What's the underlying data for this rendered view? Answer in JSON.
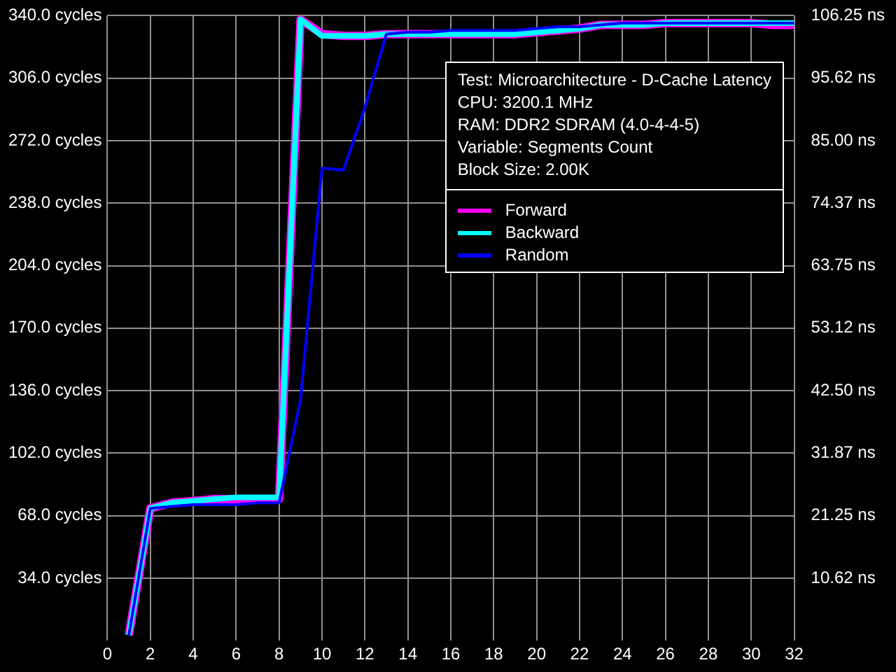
{
  "chart_data": {
    "type": "line",
    "annotations": [
      "Test: Microarchitecture - D-Cache Latency",
      "CPU: 3200.1 MHz",
      "RAM: DDR2 SDRAM (4.0-4-4-5)",
      "Variable: Segments Count",
      "Block Size: 2.00K"
    ],
    "x": [
      1,
      2,
      3,
      4,
      5,
      6,
      7,
      8,
      9,
      10,
      11,
      12,
      13,
      14,
      15,
      16,
      17,
      18,
      19,
      20,
      21,
      22,
      23,
      24,
      25,
      26,
      27,
      28,
      29,
      30,
      31,
      32
    ],
    "series": [
      {
        "name": "Forward",
        "color": "#ff00ff",
        "values": [
          3,
          72,
          75,
          76,
          77,
          77,
          77,
          77,
          338,
          330,
          329,
          329,
          330,
          330,
          330,
          330,
          330,
          330,
          330,
          331,
          332,
          333,
          335,
          335,
          335,
          336,
          336,
          336,
          336,
          336,
          335,
          335
        ]
      },
      {
        "name": "Backward",
        "color": "#00ffff",
        "values": [
          3,
          72,
          75,
          76,
          77,
          78,
          78,
          78,
          338,
          329,
          329,
          329,
          330,
          330,
          330,
          330,
          330,
          330,
          330,
          331,
          332,
          333,
          335,
          335,
          335,
          336,
          336,
          336,
          336,
          336,
          336,
          336
        ]
      },
      {
        "name": "Random",
        "color": "#0000ff",
        "values": [
          3,
          72,
          73,
          74,
          74,
          74,
          75,
          75,
          131,
          257,
          256,
          290,
          330,
          331,
          331,
          332,
          332,
          332,
          332,
          333,
          334,
          334,
          335,
          336,
          336,
          336,
          336,
          336,
          336,
          336,
          336,
          336
        ]
      }
    ],
    "xlim": [
      0,
      32
    ],
    "xticks": [
      0,
      2,
      4,
      6,
      8,
      10,
      12,
      14,
      16,
      18,
      20,
      22,
      24,
      26,
      28,
      30,
      32
    ],
    "ylim": [
      0,
      340
    ],
    "yticks": [
      {
        "value": 34,
        "label": "34.0 cycles"
      },
      {
        "value": 68,
        "label": "68.0 cycles"
      },
      {
        "value": 102,
        "label": "102.0 cycles"
      },
      {
        "value": 136,
        "label": "136.0 cycles"
      },
      {
        "value": 170,
        "label": "170.0 cycles"
      },
      {
        "value": 204,
        "label": "204.0 cycles"
      },
      {
        "value": 238,
        "label": "238.0 cycles"
      },
      {
        "value": 272,
        "label": "272.0 cycles"
      },
      {
        "value": 306,
        "label": "306.0 cycles"
      },
      {
        "value": 340,
        "label": "340.0 cycles"
      }
    ],
    "y2lim": [
      0,
      106.25
    ],
    "y2ticks": [
      {
        "value": 10.62,
        "label": "10.62 ns"
      },
      {
        "value": 21.25,
        "label": "21.25 ns"
      },
      {
        "value": 31.87,
        "label": "31.87 ns"
      },
      {
        "value": 42.5,
        "label": "42.50 ns"
      },
      {
        "value": 53.12,
        "label": "53.12 ns"
      },
      {
        "value": 63.75,
        "label": "63.75 ns"
      },
      {
        "value": 74.37,
        "label": "74.37 ns"
      },
      {
        "value": 85,
        "label": "85.00 ns"
      },
      {
        "value": 95.62,
        "label": "95.62 ns"
      },
      {
        "value": 106.25,
        "label": "106.25 ns"
      }
    ],
    "grid": true,
    "legend": "top right",
    "marker": "none",
    "line_style": "solid"
  }
}
